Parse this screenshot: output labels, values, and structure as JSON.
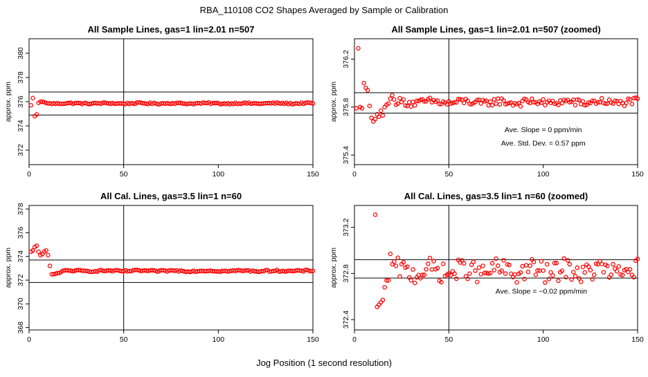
{
  "figure": {
    "suptitle": "RBA_110108  CO2 Shapes Averaged by Sample or Calibration",
    "xlabel": "Jog Position (1 second resolution)"
  },
  "colors": {
    "points": "#ff0000",
    "axes": "#000000",
    "background": "#ffffff"
  },
  "chart_data": [
    {
      "id": "p1",
      "type": "scatter",
      "title": "All Sample Lines, gas=1 lin=2.01 n=507",
      "ylabel": "approx. ppm",
      "xlim": [
        0,
        150
      ],
      "ylim": [
        370.8,
        381.2
      ],
      "xticks": [
        0,
        50,
        100,
        150
      ],
      "xtick_labels": [
        "0",
        "50",
        "100",
        "150"
      ],
      "yticks": [
        372,
        374,
        376,
        378,
        380
      ],
      "ytick_labels": [
        "372",
        "374",
        "376",
        "378",
        "380"
      ],
      "hlines": [
        376.8,
        374.9
      ],
      "vlines": [
        50
      ],
      "annotations": [],
      "gen": {
        "type": "flat",
        "level": 375.86,
        "amp": 0.06,
        "early": [
          [
            1,
            375.7
          ],
          [
            2,
            376.3
          ],
          [
            3,
            374.8
          ],
          [
            4,
            374.95
          ],
          [
            5,
            375.9
          ],
          [
            6,
            376.0
          ],
          [
            7,
            376.0
          ],
          [
            8,
            375.95
          ],
          [
            9,
            375.9
          ],
          [
            10,
            375.85
          ]
        ]
      }
    },
    {
      "id": "p2",
      "type": "scatter",
      "title": "All Sample Lines, gas=1 lin=2.01 n=507 (zoomed)",
      "ylabel": "approx. ppm",
      "xlim": [
        0,
        150
      ],
      "ylim": [
        375.32,
        376.37
      ],
      "xticks": [
        0,
        50,
        100,
        150
      ],
      "xtick_labels": [
        "0",
        "50",
        "100",
        "150"
      ],
      "yticks": [
        375.4,
        375.8,
        376.2
      ],
      "ytick_labels": [
        "375.4",
        "375.8",
        "376.2"
      ],
      "hlines": [
        375.92,
        375.75
      ],
      "vlines": [
        50
      ],
      "annotations": [
        {
          "text": "Ave. Slope =  0  ppm/min",
          "x": 100,
          "y": 375.59
        },
        {
          "text": "Ave. Std. Dev. =  0.57  ppm",
          "x": 100,
          "y": 375.48
        }
      ],
      "gen": {
        "type": "flat",
        "level": 375.84,
        "amp": 0.03,
        "early": [
          [
            1,
            375.79
          ],
          [
            2,
            376.29
          ],
          [
            3,
            375.8
          ],
          [
            4,
            375.79
          ],
          [
            5,
            376.0
          ],
          [
            6,
            375.96
          ],
          [
            7,
            375.94
          ],
          [
            8,
            375.81
          ],
          [
            9,
            375.71
          ],
          [
            10,
            375.68
          ],
          [
            11,
            375.7
          ],
          [
            12,
            375.74
          ],
          [
            13,
            375.72
          ],
          [
            14,
            375.77
          ],
          [
            15,
            375.73
          ],
          [
            16,
            375.8
          ],
          [
            17,
            375.82
          ],
          [
            18,
            375.83
          ],
          [
            19,
            375.87
          ],
          [
            20,
            375.9
          ]
        ]
      }
    },
    {
      "id": "p3",
      "type": "scatter",
      "title": "All Cal. Lines, gas=3.5 lin=1 n=60",
      "ylabel": "approx. ppm",
      "xlim": [
        0,
        150
      ],
      "ylim": [
        367.8,
        378.3
      ],
      "xticks": [
        0,
        50,
        100,
        150
      ],
      "xtick_labels": [
        "0",
        "50",
        "100",
        "150"
      ],
      "yticks": [
        368,
        370,
        372,
        374,
        376,
        378
      ],
      "ytick_labels": [
        "368",
        "370",
        "372",
        "374",
        "376",
        "378"
      ],
      "hlines": [
        373.7,
        371.8
      ],
      "vlines": [
        50
      ],
      "annotations": [],
      "gen": {
        "type": "flat",
        "level": 372.78,
        "amp": 0.07,
        "early": [
          [
            1,
            374.4
          ],
          [
            2,
            374.5
          ],
          [
            3,
            374.8
          ],
          [
            4,
            374.9
          ],
          [
            5,
            374.4
          ],
          [
            6,
            374.1
          ],
          [
            7,
            374.2
          ],
          [
            8,
            374.4
          ],
          [
            9,
            374.5
          ],
          [
            10,
            374.1
          ],
          [
            11,
            373.2
          ],
          [
            12,
            372.5
          ],
          [
            13,
            372.5
          ],
          [
            14,
            372.55
          ],
          [
            15,
            372.6
          ],
          [
            16,
            372.6
          ],
          [
            17,
            372.7
          ],
          [
            18,
            372.8
          ]
        ]
      }
    },
    {
      "id": "p4",
      "type": "scatter",
      "title": "All Cal. Lines, gas=3.5 lin=1 n=60 (zoomed)",
      "ylabel": "approx. ppm",
      "xlim": [
        0,
        150
      ],
      "ylim": [
        372.31,
        373.39
      ],
      "xticks": [
        0,
        50,
        100,
        150
      ],
      "xtick_labels": [
        "0",
        "50",
        "100",
        "150"
      ],
      "yticks": [
        372.4,
        372.8,
        373.2
      ],
      "ytick_labels": [
        "372.4",
        "372.8",
        "373.2"
      ],
      "hlines": [
        372.92,
        372.76
      ],
      "vlines": [
        50
      ],
      "annotations": [
        {
          "text": "Ave. Slope =  −0.02  ppm/min",
          "x": 99,
          "y": 372.625
        }
      ],
      "gen": {
        "type": "noisy",
        "level": 372.82,
        "amp": 0.09,
        "early": [
          [
            11,
            373.31
          ],
          [
            12,
            372.51
          ],
          [
            13,
            372.53
          ],
          [
            14,
            372.55
          ],
          [
            15,
            372.57
          ],
          [
            16,
            372.68
          ],
          [
            17,
            372.74
          ],
          [
            18,
            372.74
          ],
          [
            19,
            372.97
          ],
          [
            20,
            372.88
          ]
        ]
      }
    }
  ]
}
